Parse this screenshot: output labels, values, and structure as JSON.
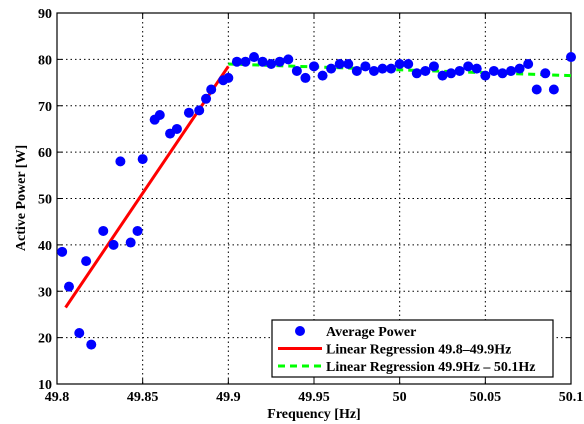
{
  "chart_data": {
    "type": "scatter",
    "title": "",
    "xlabel": "Frequency [Hz]",
    "ylabel": "Active Power [W]",
    "xlim": [
      49.8,
      50.1
    ],
    "ylim": [
      10,
      90
    ],
    "grid": true,
    "legend_position": "bottom-right",
    "x_ticks": [
      49.8,
      49.85,
      49.9,
      49.95,
      50,
      50.05,
      50.1
    ],
    "x_tick_labels": [
      "49.8",
      "49.85",
      "49.9",
      "49.95",
      "50",
      "50.05",
      "50.1"
    ],
    "y_ticks": [
      10,
      20,
      30,
      40,
      50,
      60,
      70,
      80,
      90
    ],
    "y_tick_labels": [
      "10",
      "20",
      "30",
      "40",
      "50",
      "60",
      "70",
      "80",
      "90"
    ],
    "series": [
      {
        "name": "Average Power",
        "type": "scatter",
        "color": "#0000ff",
        "points": [
          [
            49.803,
            38.5
          ],
          [
            49.807,
            31.0
          ],
          [
            49.813,
            21.0
          ],
          [
            49.817,
            36.5
          ],
          [
            49.82,
            18.5
          ],
          [
            49.827,
            43.0
          ],
          [
            49.833,
            40.0
          ],
          [
            49.837,
            58.0
          ],
          [
            49.843,
            40.5
          ],
          [
            49.847,
            43.0
          ],
          [
            49.85,
            58.5
          ],
          [
            49.857,
            67.0
          ],
          [
            49.86,
            68.0
          ],
          [
            49.866,
            64.0
          ],
          [
            49.87,
            65.0
          ],
          [
            49.877,
            68.5
          ],
          [
            49.883,
            69.0
          ],
          [
            49.887,
            71.5
          ],
          [
            49.89,
            73.5
          ],
          [
            49.897,
            75.5
          ],
          [
            49.9,
            76.0
          ],
          [
            49.905,
            79.5
          ],
          [
            49.91,
            79.5
          ],
          [
            49.915,
            80.5
          ],
          [
            49.92,
            79.5
          ],
          [
            49.925,
            79.0
          ],
          [
            49.93,
            79.5
          ],
          [
            49.935,
            80.0
          ],
          [
            49.94,
            77.5
          ],
          [
            49.945,
            76.0
          ],
          [
            49.95,
            78.5
          ],
          [
            49.955,
            76.5
          ],
          [
            49.96,
            78.0
          ],
          [
            49.965,
            79.0
          ],
          [
            49.97,
            79.0
          ],
          [
            49.975,
            77.5
          ],
          [
            49.98,
            78.5
          ],
          [
            49.985,
            77.5
          ],
          [
            49.99,
            78.0
          ],
          [
            49.995,
            78.0
          ],
          [
            50.0,
            79.0
          ],
          [
            50.005,
            79.0
          ],
          [
            50.01,
            77.0
          ],
          [
            50.015,
            77.5
          ],
          [
            50.02,
            78.5
          ],
          [
            50.025,
            76.5
          ],
          [
            50.03,
            77.0
          ],
          [
            50.035,
            77.5
          ],
          [
            50.04,
            78.5
          ],
          [
            50.045,
            78.0
          ],
          [
            50.05,
            76.5
          ],
          [
            50.055,
            77.5
          ],
          [
            50.06,
            77.0
          ],
          [
            50.065,
            77.5
          ],
          [
            50.07,
            78.0
          ],
          [
            50.075,
            79.0
          ],
          [
            50.08,
            73.5
          ],
          [
            50.085,
            77.0
          ],
          [
            50.09,
            73.5
          ],
          [
            50.1,
            80.5
          ]
        ]
      },
      {
        "name": "Linear Regression 49.8–49.9Hz",
        "type": "line",
        "color": "#ff0000",
        "dash": "solid",
        "points": [
          [
            49.805,
            26.5
          ],
          [
            49.9,
            78.5
          ]
        ]
      },
      {
        "name": "Linear Regression 49.9Hz – 50.1Hz",
        "type": "line",
        "color": "#00ff00",
        "dash": "dashed",
        "points": [
          [
            49.9,
            79.0
          ],
          [
            50.1,
            76.5
          ]
        ]
      }
    ]
  }
}
